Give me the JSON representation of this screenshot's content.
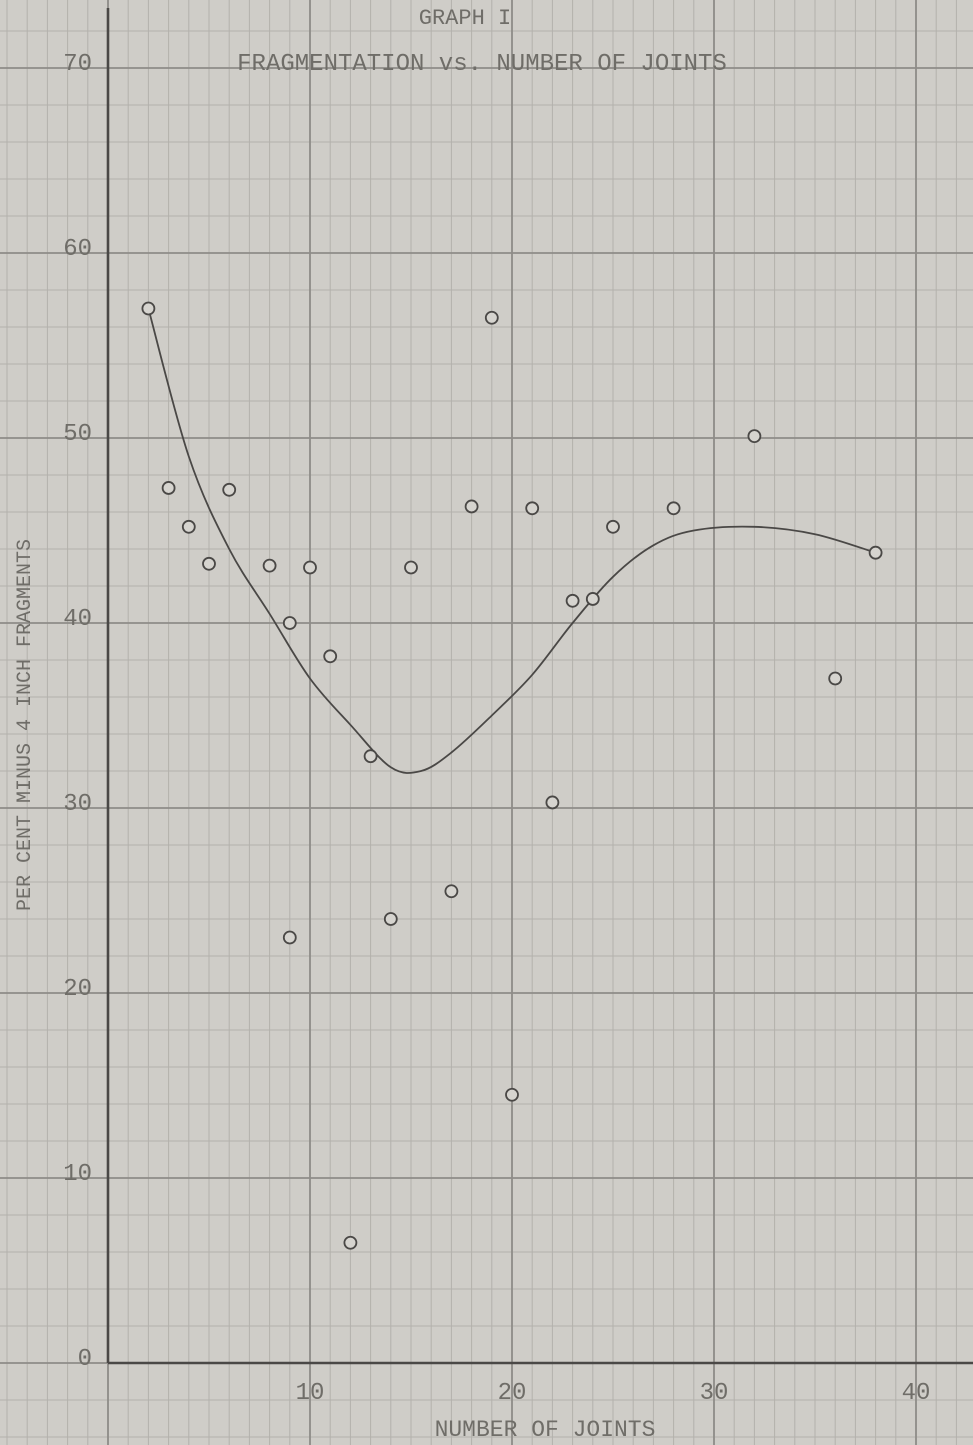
{
  "chart_data": {
    "type": "scatter",
    "title": "GRAPH I",
    "subtitle": "FRAGMENTATION vs. NUMBER OF JOINTS",
    "xlabel": "NUMBER OF JOINTS",
    "ylabel": "PER CENT MINUS 4 INCH FRAGMENTS",
    "xlim": [
      0,
      43
    ],
    "ylim": [
      0,
      73
    ],
    "x_ticks": [
      10,
      20,
      30,
      40
    ],
    "y_ticks": [
      0,
      10,
      20,
      30,
      40,
      50,
      60,
      70
    ],
    "grid": true,
    "colors": {
      "paper": "#cfcdc8",
      "grid_major": "#8e8c88",
      "grid_minor": "#b3b1ac",
      "ink": "#4a4846"
    },
    "series": [
      {
        "type": "scatter",
        "points": [
          [
            2,
            57
          ],
          [
            3,
            47.3
          ],
          [
            4,
            45.2
          ],
          [
            5,
            43.2
          ],
          [
            6,
            47.2
          ],
          [
            8,
            43.1
          ],
          [
            9,
            40
          ],
          [
            9,
            23
          ],
          [
            10,
            43
          ],
          [
            11,
            38.2
          ],
          [
            12,
            6.5
          ],
          [
            13,
            32.8
          ],
          [
            14,
            24
          ],
          [
            15,
            43
          ],
          [
            17,
            25.5
          ],
          [
            18,
            46.3
          ],
          [
            19,
            56.5
          ],
          [
            20,
            14.5
          ],
          [
            21,
            46.2
          ],
          [
            22,
            30.3
          ],
          [
            23,
            41.2
          ],
          [
            24,
            41.3
          ],
          [
            25,
            45.2
          ],
          [
            28,
            46.2
          ],
          [
            32,
            50.1
          ],
          [
            36,
            37
          ],
          [
            38,
            43.8
          ]
        ]
      },
      {
        "type": "line",
        "smooth": true,
        "points": [
          [
            2,
            57
          ],
          [
            4,
            49
          ],
          [
            6,
            44
          ],
          [
            8,
            40.5
          ],
          [
            10,
            37
          ],
          [
            12,
            34.5
          ],
          [
            14,
            32.2
          ],
          [
            15.5,
            32
          ],
          [
            17,
            33
          ],
          [
            19,
            35
          ],
          [
            21,
            37.2
          ],
          [
            23,
            40
          ],
          [
            25,
            42.5
          ],
          [
            27,
            44.2
          ],
          [
            29,
            45
          ],
          [
            32,
            45.2
          ],
          [
            35,
            44.8
          ],
          [
            38,
            43.8
          ]
        ]
      }
    ]
  }
}
